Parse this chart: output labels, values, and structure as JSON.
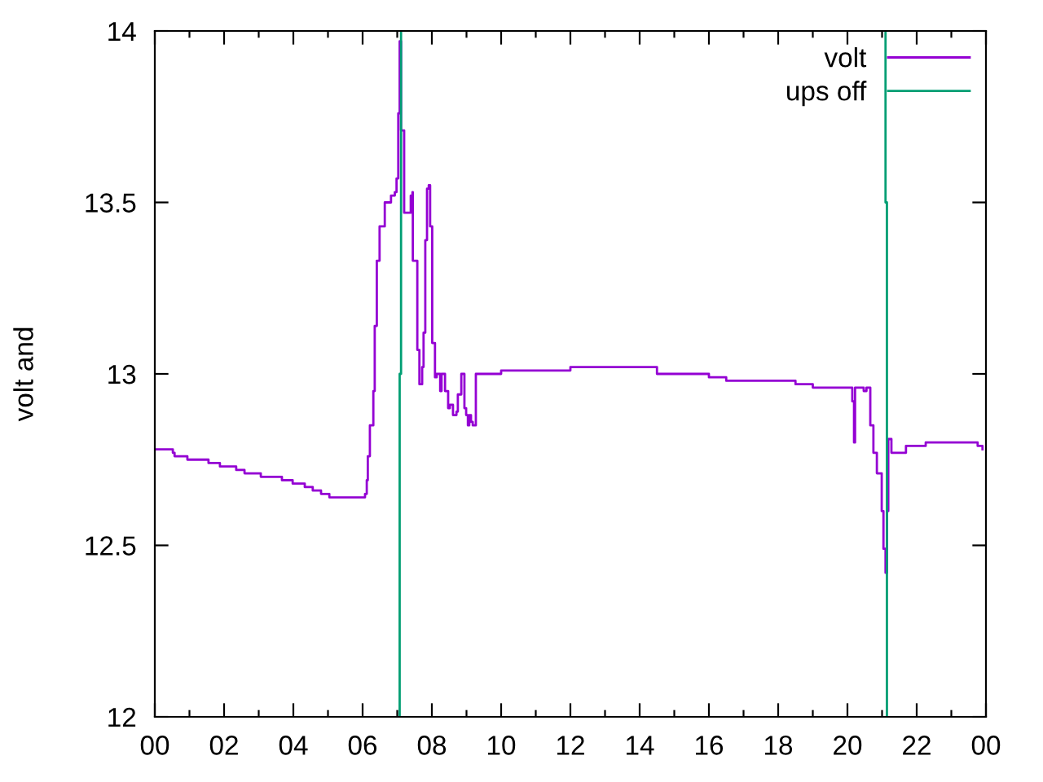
{
  "chart_data": {
    "type": "step",
    "ylabel": "volt and",
    "xlim": [
      0,
      24
    ],
    "ylim": [
      12,
      14
    ],
    "xticks": [
      {
        "value": 0,
        "label": "00"
      },
      {
        "value": 1,
        "label": null
      },
      {
        "value": 2,
        "label": "02"
      },
      {
        "value": 3,
        "label": null
      },
      {
        "value": 4,
        "label": "04"
      },
      {
        "value": 5,
        "label": null
      },
      {
        "value": 6,
        "label": "06"
      },
      {
        "value": 7,
        "label": null
      },
      {
        "value": 8,
        "label": "08"
      },
      {
        "value": 9,
        "label": null
      },
      {
        "value": 10,
        "label": "10"
      },
      {
        "value": 11,
        "label": null
      },
      {
        "value": 12,
        "label": "12"
      },
      {
        "value": 13,
        "label": null
      },
      {
        "value": 14,
        "label": "14"
      },
      {
        "value": 15,
        "label": null
      },
      {
        "value": 16,
        "label": "16"
      },
      {
        "value": 17,
        "label": null
      },
      {
        "value": 18,
        "label": "18"
      },
      {
        "value": 19,
        "label": null
      },
      {
        "value": 20,
        "label": "20"
      },
      {
        "value": 21,
        "label": null
      },
      {
        "value": 22,
        "label": "22"
      },
      {
        "value": 23,
        "label": null
      },
      {
        "value": 24,
        "label": "00"
      }
    ],
    "yticks": [
      12,
      12.5,
      13,
      13.5,
      14
    ],
    "grid": false,
    "legend": "top right",
    "line_style": "solid",
    "marker": "none",
    "series": [
      {
        "name": "volt",
        "color": "#9400d3",
        "x": [
          0,
          0.52,
          0.57,
          0.89,
          0.94,
          1.46,
          1.55,
          1.83,
          1.88,
          2.31,
          2.35,
          2.54,
          2.59,
          2.96,
          3.06,
          3.53,
          3.67,
          3.98,
          4.07,
          4.33,
          4.56,
          4.8,
          5.04,
          5.41,
          5.88,
          6.07,
          6.12,
          6.15,
          6.21,
          6.31,
          6.35,
          6.41,
          6.49,
          6.64,
          6.73,
          6.82,
          6.93,
          6.98,
          7.03,
          7.07,
          7.11,
          7.2,
          7.39,
          7.44,
          7.45,
          7.58,
          7.64,
          7.72,
          7.76,
          7.81,
          7.86,
          7.91,
          7.95,
          8.01,
          8.09,
          8.14,
          8.24,
          8.28,
          8.38,
          8.47,
          8.52,
          8.61,
          8.71,
          8.75,
          8.85,
          8.94,
          8.99,
          9.04,
          9.08,
          9.13,
          9.18,
          9.27,
          10,
          12,
          14,
          14.5,
          16,
          16.5,
          18,
          18.5,
          19,
          20.07,
          20.14,
          20.19,
          20.22,
          20.47,
          20.55,
          20.66,
          20.75,
          20.85,
          20.99,
          21.04,
          21.1,
          21.14,
          21.18,
          21.27,
          21.69,
          22.26,
          23.06,
          23.76,
          23.9
        ],
        "values": [
          12.78,
          12.77,
          12.76,
          12.76,
          12.75,
          12.75,
          12.74,
          12.74,
          12.73,
          12.73,
          12.72,
          12.72,
          12.71,
          12.71,
          12.7,
          12.7,
          12.69,
          12.68,
          12.68,
          12.67,
          12.66,
          12.65,
          12.64,
          12.64,
          12.64,
          12.65,
          12.69,
          12.76,
          12.85,
          12.95,
          13.14,
          13.33,
          13.43,
          13.5,
          13.5,
          13.52,
          13.53,
          13.57,
          13.76,
          13.97,
          13.71,
          13.47,
          13.52,
          13.53,
          13.33,
          13.07,
          12.97,
          13.02,
          13.12,
          13.39,
          13.54,
          13.55,
          13.43,
          13.09,
          12.99,
          13.0,
          12.95,
          13.0,
          12.95,
          12.9,
          12.91,
          12.88,
          12.89,
          12.94,
          13.0,
          12.9,
          12.88,
          12.85,
          12.88,
          12.86,
          12.85,
          13.0,
          13.01,
          13.02,
          13.02,
          13.0,
          12.99,
          12.98,
          12.98,
          12.97,
          12.96,
          12.96,
          12.92,
          12.8,
          12.96,
          12.95,
          12.96,
          12.85,
          12.77,
          12.71,
          12.6,
          12.49,
          12.42,
          12.6,
          12.81,
          12.77,
          12.79,
          12.8,
          12.8,
          12.79,
          12.78
        ]
      },
      {
        "name": "ups off",
        "color": "#009e73",
        "type": "line",
        "x": [
          7.07,
          7.07,
          7.11,
          7.11,
          null,
          21.1,
          21.1,
          21.14,
          21.14
        ],
        "values": [
          12,
          13,
          13,
          14,
          null,
          14,
          13.5,
          13.5,
          12
        ]
      }
    ]
  }
}
